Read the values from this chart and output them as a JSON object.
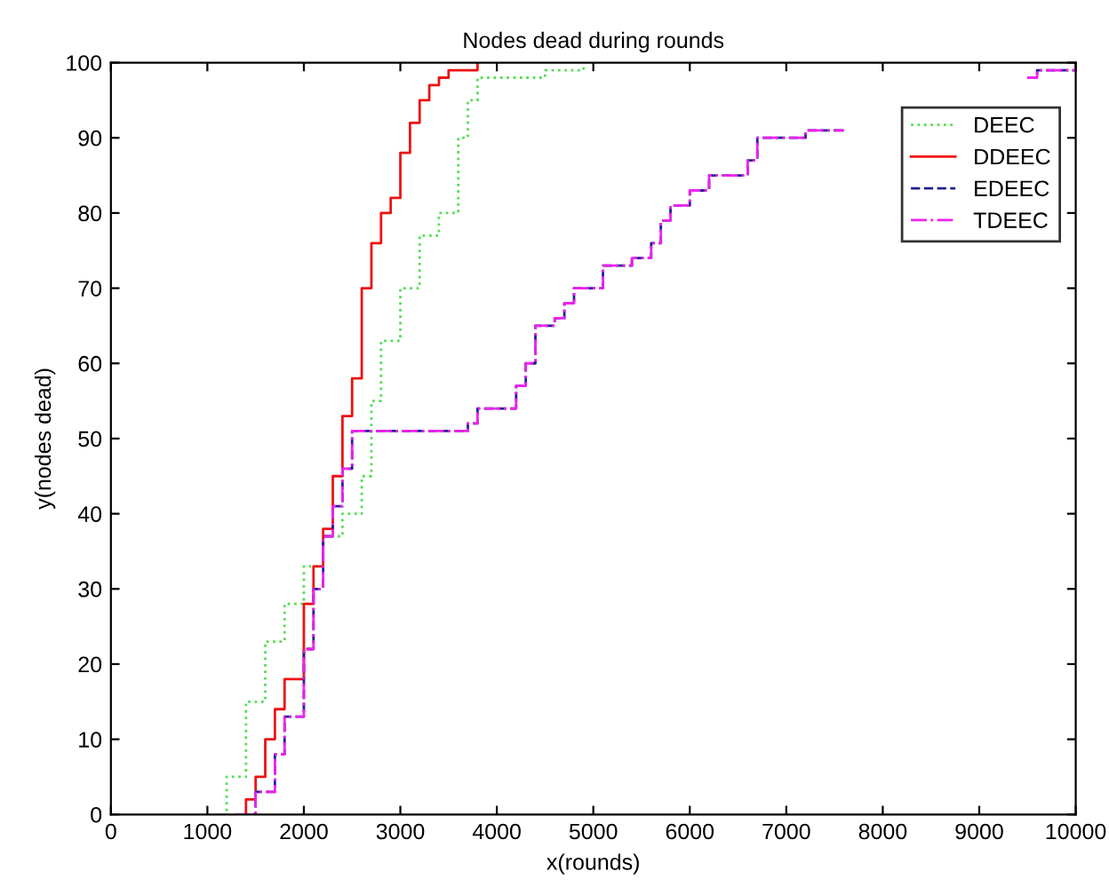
{
  "chart_data": {
    "type": "step",
    "title": "Nodes dead during rounds",
    "xlabel": "x(rounds)",
    "ylabel": "y(nodes dead)",
    "xlim": [
      0,
      10000
    ],
    "xticks": [
      0,
      1000,
      2000,
      3000,
      4000,
      5000,
      6000,
      7000,
      8000,
      9000,
      10000
    ],
    "ylim": [
      0,
      100
    ],
    "yticks": [
      0,
      10,
      20,
      30,
      40,
      50,
      60,
      70,
      80,
      90,
      100
    ],
    "grid": false,
    "legend": "top right",
    "series": [
      {
        "name": "DEEC",
        "color": "#55dd55",
        "line_style": "dotted",
        "x": [
          1100,
          1200,
          1400,
          1600,
          1800,
          2000,
          2200,
          2400,
          2600,
          2700,
          2800,
          3000,
          3200,
          3400,
          3600,
          3700,
          3800,
          4500,
          4900
        ],
        "values": [
          0,
          5,
          15,
          23,
          28,
          33,
          37,
          40,
          45,
          55,
          63,
          70,
          77,
          80,
          90,
          95,
          98,
          99,
          100
        ]
      },
      {
        "name": "DDEEC",
        "color": "#ee1111",
        "line_style": "solid",
        "x": [
          1300,
          1400,
          1500,
          1600,
          1700,
          1800,
          1900,
          2000,
          2100,
          2200,
          2300,
          2400,
          2500,
          2600,
          2700,
          2800,
          2900,
          3000,
          3100,
          3200,
          3300,
          3400,
          3500,
          3800
        ],
        "values": [
          0,
          2,
          5,
          10,
          14,
          18,
          18,
          28,
          33,
          38,
          45,
          53,
          58,
          70,
          76,
          80,
          82,
          88,
          92,
          95,
          97,
          98,
          99,
          100
        ]
      },
      {
        "name": "EDEEC",
        "color": "#202090",
        "line_style": "dashed",
        "x": [
          1300,
          1500,
          1700,
          1800,
          2000,
          2100,
          2200,
          2300,
          2400,
          2500,
          3500,
          3700,
          3800,
          4100,
          4200,
          4300,
          4400,
          4600,
          4700,
          4800,
          5000,
          5100,
          5400,
          5600,
          5700,
          5800,
          6000,
          6200,
          6500,
          6600,
          6700,
          7100,
          7200,
          7500,
          7600,
          9500,
          9600,
          10000
        ],
        "values": [
          0,
          3,
          8,
          13,
          22,
          30,
          37,
          41,
          46,
          51,
          51,
          52,
          54,
          54,
          57,
          60,
          65,
          66,
          68,
          70,
          70,
          73,
          74,
          76,
          79,
          81,
          83,
          85,
          85,
          87,
          90,
          90,
          91,
          91,
          null,
          98,
          99,
          100
        ]
      },
      {
        "name": "TDEEC",
        "color": "#ee22ee",
        "line_style": "dashdot",
        "x": [
          1300,
          1500,
          1700,
          1800,
          2000,
          2100,
          2200,
          2300,
          2400,
          2500,
          3500,
          3700,
          3800,
          4100,
          4200,
          4300,
          4400,
          4600,
          4700,
          4800,
          5000,
          5100,
          5400,
          5600,
          5700,
          5800,
          6000,
          6200,
          6500,
          6600,
          6700,
          7100,
          7200,
          7500,
          7600,
          9500,
          9600,
          10000
        ],
        "values": [
          0,
          3,
          8,
          13,
          22,
          30,
          37,
          41,
          46,
          51,
          51,
          52,
          54,
          54,
          57,
          60,
          65,
          66,
          68,
          70,
          70,
          73,
          74,
          76,
          79,
          81,
          83,
          85,
          85,
          87,
          90,
          90,
          91,
          91,
          null,
          98,
          99,
          100
        ]
      }
    ]
  }
}
